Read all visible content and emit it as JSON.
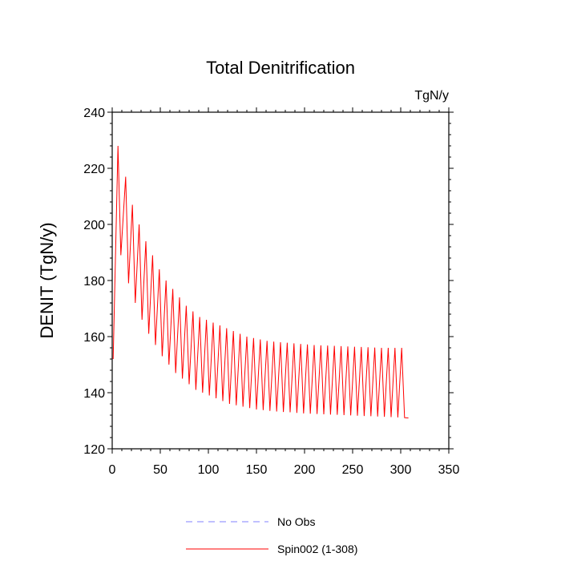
{
  "chart_data": {
    "type": "line",
    "title": "Total Denitrification",
    "units": "TgN/y",
    "xlabel": "",
    "ylabel": "DENIT  (TgN/y)",
    "xlim": [
      0,
      350
    ],
    "ylim": [
      120,
      240
    ],
    "xticks": [
      0,
      50,
      100,
      150,
      200,
      250,
      300,
      350
    ],
    "xtick_labels": [
      "0",
      "50",
      "100",
      "150",
      "200",
      "250",
      "300",
      "350"
    ],
    "yticks": [
      120,
      140,
      160,
      180,
      200,
      220,
      240
    ],
    "ytick_labels": [
      "120",
      "140",
      "160",
      "180",
      "200",
      "220",
      "240"
    ],
    "grid": false,
    "legend_position": "bottom-center",
    "series": [
      {
        "name": "No Obs",
        "color": "#8080ff",
        "line_style": "dashed",
        "x": [],
        "y": []
      },
      {
        "name": "Spin002 (1-308)",
        "color": "#ff0000",
        "line_style": "solid",
        "x": [
          1,
          6,
          9,
          14,
          17,
          21,
          24,
          28,
          31,
          35,
          38,
          42,
          45,
          49,
          52,
          56,
          59,
          63,
          66,
          70,
          73,
          77,
          80,
          84,
          87,
          91,
          94,
          98,
          101,
          105,
          108,
          112,
          115,
          119,
          122,
          126,
          129,
          133,
          136,
          140,
          143,
          147,
          150,
          154,
          157,
          161,
          164,
          168,
          171,
          175,
          178,
          182,
          185,
          189,
          192,
          196,
          199,
          203,
          206,
          210,
          213,
          217,
          220,
          224,
          227,
          231,
          234,
          238,
          241,
          245,
          248,
          252,
          255,
          259,
          262,
          266,
          269,
          273,
          276,
          280,
          283,
          287,
          290,
          294,
          297,
          301,
          304,
          308
        ],
        "y": [
          152,
          228,
          189,
          217,
          179,
          207,
          172,
          200,
          166,
          194,
          161,
          189,
          157,
          184,
          153,
          180,
          150,
          177,
          147,
          174,
          145,
          171,
          143,
          169,
          141,
          167,
          140,
          166,
          139,
          165,
          138,
          164,
          137,
          163,
          136,
          162,
          135.5,
          161,
          135,
          160,
          134.5,
          159.5,
          134,
          159,
          133.8,
          158.5,
          133.5,
          158.2,
          133.3,
          158,
          133.1,
          157.8,
          133,
          157.6,
          132.8,
          157.4,
          132.6,
          157.2,
          132.5,
          157,
          132.4,
          156.9,
          132.3,
          156.8,
          132.2,
          156.7,
          132.1,
          156.6,
          132,
          156.5,
          131.9,
          156.4,
          131.8,
          156.3,
          131.7,
          156.2,
          131.6,
          156.1,
          131.5,
          156,
          131.4,
          156,
          131.3,
          156,
          131.2,
          156,
          131.1,
          131
        ]
      }
    ]
  }
}
